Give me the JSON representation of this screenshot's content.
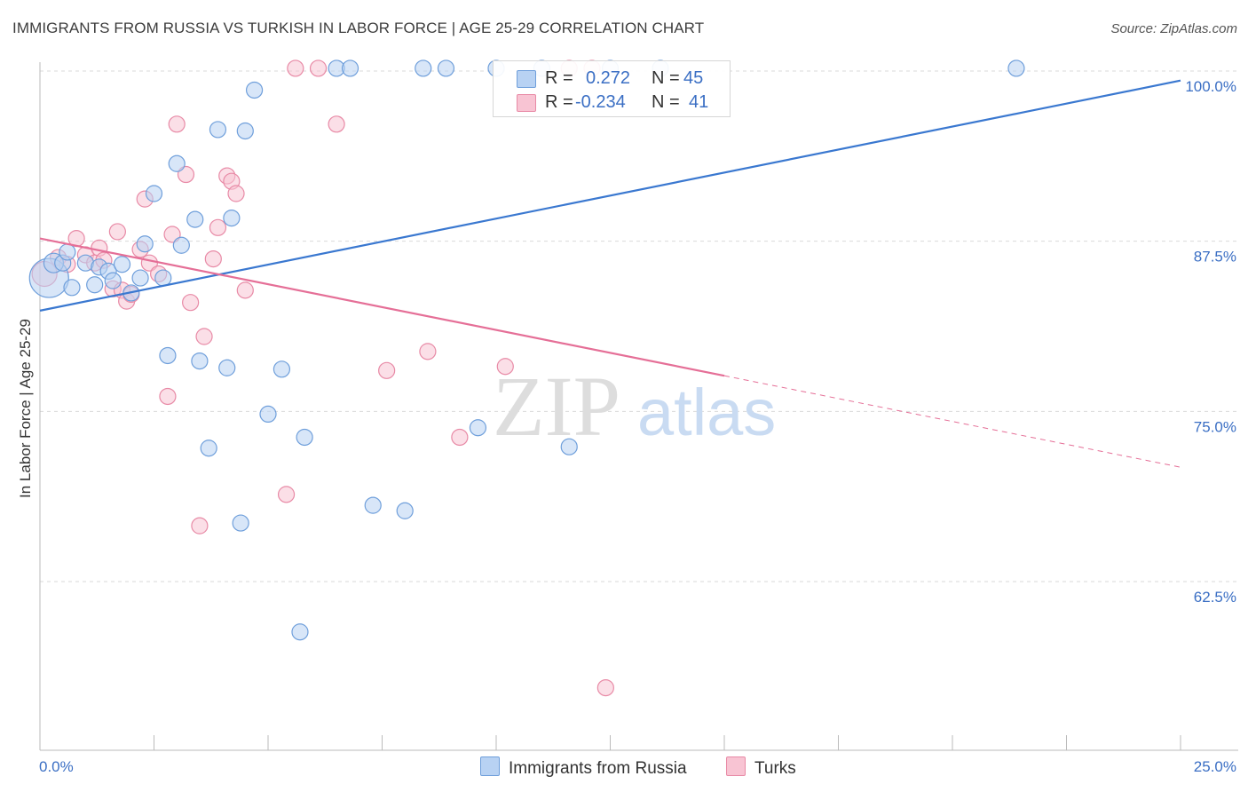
{
  "header": {
    "title": "IMMIGRANTS FROM RUSSIA VS TURKISH IN LABOR FORCE | AGE 25-29 CORRELATION CHART",
    "source": "Source: ZipAtlas.com"
  },
  "watermark": {
    "part1": "ZIP",
    "part2": "atlas"
  },
  "legend": {
    "r_label": "R =",
    "n_label": "N =",
    "series1": {
      "r": "0.272",
      "n": "45",
      "color": "#aac8f0"
    },
    "series2": {
      "r": "-0.234",
      "n": "41",
      "color": "#f7b8cb"
    }
  },
  "bottom_legend": {
    "series1_name": "Immigrants from Russia",
    "series2_name": "Turks"
  },
  "colors": {
    "blue_fill": "#b8d2f3",
    "blue_stroke": "#6f9fdb",
    "blue_line": "#3a78d0",
    "pink_fill": "#f8c4d3",
    "pink_stroke": "#e88aa6",
    "pink_line": "#e56f97",
    "axis_text": "#3b6fc4",
    "grid": "#d9d9d9"
  },
  "chart_data": {
    "type": "scatter",
    "title": "IMMIGRANTS FROM RUSSIA VS TURKISH IN LABOR FORCE | AGE 25-29 CORRELATION CHART",
    "xlabel": "",
    "ylabel": "In Labor Force | Age 25-29",
    "xlim": [
      0,
      25
    ],
    "ylim": [
      50,
      102
    ],
    "x_tick_labels": [
      "0.0%",
      "25.0%"
    ],
    "y_ticks": [
      62.5,
      75.0,
      87.5,
      100.0
    ],
    "y_tick_labels": [
      "62.5%",
      "75.0%",
      "87.5%",
      "100.0%"
    ],
    "series": [
      {
        "name": "Immigrants from Russia",
        "color": "blue",
        "trend": {
          "x": [
            0,
            25
          ],
          "y": [
            82.4,
            99.3
          ],
          "dashed_from": null
        },
        "points": [
          [
            0.2,
            84.8,
            22
          ],
          [
            0.3,
            85.9,
            11
          ],
          [
            0.5,
            85.9,
            9
          ],
          [
            0.6,
            86.7,
            9
          ],
          [
            0.7,
            84.1,
            9
          ],
          [
            1.0,
            85.9,
            9
          ],
          [
            1.2,
            84.3,
            9
          ],
          [
            1.3,
            85.6,
            9
          ],
          [
            1.5,
            85.3,
            9
          ],
          [
            1.6,
            84.6,
            9
          ],
          [
            1.8,
            85.8,
            9
          ],
          [
            2.0,
            83.7,
            9
          ],
          [
            2.2,
            84.8,
            9
          ],
          [
            2.3,
            87.3,
            9
          ],
          [
            2.5,
            91.0,
            9
          ],
          [
            2.7,
            84.8,
            9
          ],
          [
            2.8,
            79.1,
            9
          ],
          [
            3.0,
            93.2,
            9
          ],
          [
            3.1,
            87.2,
            9
          ],
          [
            3.4,
            89.1,
            9
          ],
          [
            3.5,
            78.7,
            9
          ],
          [
            3.7,
            72.3,
            9
          ],
          [
            3.9,
            95.7,
            9
          ],
          [
            4.1,
            78.2,
            9
          ],
          [
            4.2,
            89.2,
            9
          ],
          [
            4.4,
            66.8,
            9
          ],
          [
            4.5,
            95.6,
            9
          ],
          [
            4.7,
            98.6,
            9
          ],
          [
            5.0,
            74.8,
            9
          ],
          [
            5.3,
            78.1,
            9
          ],
          [
            5.7,
            58.8,
            9
          ],
          [
            5.8,
            73.1,
            9
          ],
          [
            6.5,
            100.2,
            9
          ],
          [
            6.8,
            100.2,
            9
          ],
          [
            7.3,
            68.1,
            9
          ],
          [
            8.0,
            67.7,
            9
          ],
          [
            8.4,
            100.2,
            9
          ],
          [
            8.9,
            100.2,
            9
          ],
          [
            9.6,
            73.8,
            9
          ],
          [
            10.0,
            100.2,
            9
          ],
          [
            11.0,
            100.2,
            9
          ],
          [
            11.6,
            72.4,
            9
          ],
          [
            12.5,
            100.2,
            9
          ],
          [
            13.6,
            100.2,
            9
          ],
          [
            21.4,
            100.2,
            9
          ]
        ]
      },
      {
        "name": "Turks",
        "color": "pink",
        "trend": {
          "x": [
            0,
            25
          ],
          "y": [
            87.7,
            70.9
          ],
          "dashed_from": 15.0
        },
        "points": [
          [
            0.1,
            85.1,
            14
          ],
          [
            0.4,
            86.3,
            9
          ],
          [
            0.6,
            85.8,
            9
          ],
          [
            0.8,
            87.7,
            9
          ],
          [
            1.0,
            86.5,
            9
          ],
          [
            1.2,
            85.9,
            9
          ],
          [
            1.3,
            87.0,
            9
          ],
          [
            1.4,
            86.1,
            9
          ],
          [
            1.6,
            84.0,
            9
          ],
          [
            1.7,
            88.2,
            9
          ],
          [
            1.8,
            83.9,
            9
          ],
          [
            1.9,
            83.1,
            9
          ],
          [
            2.0,
            83.6,
            9
          ],
          [
            2.2,
            86.9,
            9
          ],
          [
            2.3,
            90.6,
            9
          ],
          [
            2.4,
            85.9,
            9
          ],
          [
            2.6,
            85.1,
            9
          ],
          [
            2.8,
            76.1,
            9
          ],
          [
            2.9,
            88.0,
            9
          ],
          [
            3.0,
            96.1,
            9
          ],
          [
            3.2,
            92.4,
            9
          ],
          [
            3.3,
            83.0,
            9
          ],
          [
            3.5,
            66.6,
            9
          ],
          [
            3.6,
            80.5,
            9
          ],
          [
            3.8,
            86.2,
            9
          ],
          [
            3.9,
            88.5,
            9
          ],
          [
            4.1,
            92.3,
            9
          ],
          [
            4.2,
            91.9,
            9
          ],
          [
            4.3,
            91.0,
            9
          ],
          [
            4.5,
            83.9,
            9
          ],
          [
            5.4,
            68.9,
            9
          ],
          [
            5.6,
            100.2,
            9
          ],
          [
            6.1,
            100.2,
            9
          ],
          [
            6.5,
            96.1,
            9
          ],
          [
            7.6,
            78.0,
            9
          ],
          [
            8.5,
            79.4,
            9
          ],
          [
            9.2,
            73.1,
            9
          ],
          [
            10.2,
            78.3,
            9
          ],
          [
            11.6,
            100.2,
            9
          ],
          [
            12.1,
            100.2,
            9
          ],
          [
            12.4,
            54.7,
            9
          ]
        ]
      }
    ]
  }
}
